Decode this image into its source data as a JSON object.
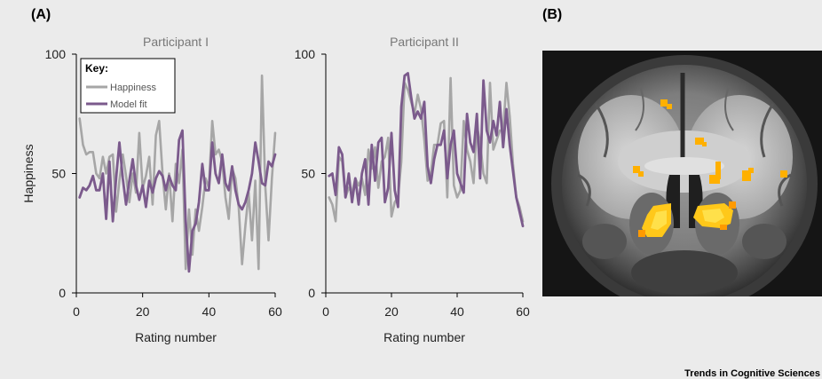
{
  "labels": {
    "panel_a": "(A)",
    "panel_b": "(B)"
  },
  "footer": "Trends in Cognitive Sciences",
  "colors": {
    "happiness": "#a6a6a6",
    "model_fit": "#7b5a8c",
    "activation": "#ffb000"
  },
  "key": {
    "title": "Key:",
    "items": [
      "Happiness",
      "Model fit"
    ]
  },
  "brain_image": {
    "description_icon": "brain-mri-coronal-slice-with-activation"
  },
  "chart_data": [
    {
      "type": "line",
      "title": "Participant I",
      "xlabel": "Rating number",
      "ylabel": "Happiness",
      "xlim": [
        0,
        60
      ],
      "ylim": [
        0,
        100
      ],
      "xticks": [
        0,
        20,
        40,
        60
      ],
      "yticks": [
        0,
        50,
        100
      ],
      "series": [
        {
          "name": "Happiness",
          "x": [
            1,
            2,
            3,
            4,
            5,
            6,
            7,
            8,
            9,
            10,
            11,
            12,
            13,
            14,
            15,
            16,
            17,
            18,
            19,
            20,
            21,
            22,
            23,
            24,
            25,
            26,
            27,
            28,
            29,
            30,
            31,
            32,
            33,
            34,
            35,
            36,
            37,
            38,
            39,
            40,
            41,
            42,
            43,
            44,
            45,
            46,
            47,
            48,
            49,
            50,
            51,
            52,
            53,
            54,
            55,
            56,
            57,
            58,
            59,
            60
          ],
          "y": [
            73,
            62,
            58,
            59,
            59,
            50,
            48,
            57,
            50,
            57,
            58,
            34,
            47,
            58,
            49,
            38,
            50,
            42,
            67,
            44,
            49,
            57,
            37,
            66,
            72,
            50,
            35,
            50,
            30,
            54,
            46,
            60,
            10,
            35,
            16,
            35,
            26,
            36,
            48,
            44,
            72,
            58,
            60,
            55,
            40,
            31,
            52,
            48,
            36,
            12,
            28,
            42,
            22,
            47,
            10,
            91,
            45,
            22,
            48,
            67
          ]
        },
        {
          "name": "Model fit",
          "x": [
            1,
            2,
            3,
            4,
            5,
            6,
            7,
            8,
            9,
            10,
            11,
            12,
            13,
            14,
            15,
            16,
            17,
            18,
            19,
            20,
            21,
            22,
            23,
            24,
            25,
            26,
            27,
            28,
            29,
            30,
            31,
            32,
            33,
            34,
            35,
            36,
            37,
            38,
            39,
            40,
            41,
            42,
            43,
            44,
            45,
            46,
            47,
            48,
            49,
            50,
            51,
            52,
            53,
            54,
            55,
            56,
            57,
            58,
            59,
            60
          ],
          "y": [
            40,
            44,
            43,
            45,
            49,
            43,
            43,
            50,
            31,
            55,
            30,
            48,
            63,
            48,
            37,
            47,
            56,
            45,
            39,
            45,
            36,
            47,
            42,
            48,
            51,
            49,
            43,
            49,
            45,
            43,
            64,
            68,
            30,
            9,
            26,
            29,
            38,
            54,
            43,
            43,
            63,
            50,
            46,
            58,
            46,
            43,
            53,
            43,
            37,
            35,
            38,
            43,
            50,
            63,
            55,
            46,
            45,
            55,
            53,
            58
          ]
        }
      ]
    },
    {
      "type": "line",
      "title": "Participant II",
      "xlabel": "Rating number",
      "xlim": [
        0,
        60
      ],
      "ylim": [
        0,
        100
      ],
      "xticks": [
        0,
        20,
        40,
        60
      ],
      "yticks": [
        0,
        50,
        100
      ],
      "series": [
        {
          "name": "Happiness",
          "x": [
            1,
            2,
            3,
            4,
            5,
            6,
            7,
            8,
            9,
            10,
            11,
            12,
            13,
            14,
            15,
            16,
            17,
            18,
            19,
            20,
            21,
            22,
            23,
            24,
            25,
            26,
            27,
            28,
            29,
            30,
            31,
            32,
            33,
            34,
            35,
            36,
            37,
            38,
            39,
            40,
            41,
            42,
            43,
            44,
            45,
            46,
            47,
            48,
            49,
            50,
            51,
            52,
            53,
            54,
            55,
            56,
            57,
            58,
            59,
            60
          ],
          "y": [
            40,
            37,
            30,
            57,
            55,
            40,
            44,
            42,
            48,
            45,
            48,
            41,
            60,
            52,
            61,
            44,
            55,
            57,
            65,
            32,
            38,
            40,
            55,
            88,
            85,
            80,
            75,
            83,
            77,
            64,
            47,
            50,
            62,
            62,
            71,
            72,
            40,
            90,
            45,
            40,
            43,
            72,
            60,
            55,
            46,
            70,
            63,
            50,
            46,
            88,
            60,
            64,
            68,
            68,
            88,
            74,
            54,
            40,
            36,
            30
          ]
        },
        {
          "name": "Model fit",
          "x": [
            1,
            2,
            3,
            4,
            5,
            6,
            7,
            8,
            9,
            10,
            11,
            12,
            13,
            14,
            15,
            16,
            17,
            18,
            19,
            20,
            21,
            22,
            23,
            24,
            25,
            26,
            27,
            28,
            29,
            30,
            31,
            32,
            33,
            34,
            35,
            36,
            37,
            38,
            39,
            40,
            41,
            42,
            43,
            44,
            45,
            46,
            47,
            48,
            49,
            50,
            51,
            52,
            53,
            54,
            55,
            56,
            57,
            58,
            59,
            60
          ],
          "y": [
            49,
            50,
            41,
            61,
            58,
            40,
            50,
            38,
            48,
            37,
            50,
            56,
            37,
            62,
            47,
            63,
            65,
            38,
            44,
            67,
            43,
            36,
            78,
            91,
            92,
            82,
            73,
            76,
            73,
            80,
            53,
            46,
            56,
            62,
            62,
            68,
            48,
            62,
            68,
            50,
            46,
            42,
            75,
            63,
            59,
            75,
            48,
            89,
            68,
            63,
            72,
            66,
            80,
            61,
            77,
            62,
            51,
            40,
            34,
            28
          ]
        }
      ]
    }
  ]
}
